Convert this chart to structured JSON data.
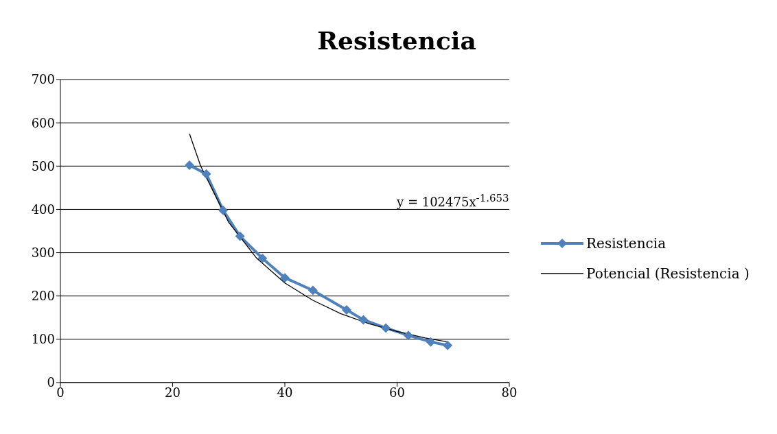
{
  "chart_data": {
    "type": "line",
    "title": "Resistencia",
    "series": [
      {
        "name": "Resistencia",
        "color": "#4f81bd",
        "marker": "diamond",
        "x": [
          23,
          26,
          29,
          32,
          36,
          40,
          45,
          51,
          54,
          58,
          62,
          66,
          69
        ],
        "values": [
          502,
          482,
          398,
          338,
          287,
          242,
          213,
          168,
          145,
          126,
          109,
          94,
          86
        ]
      },
      {
        "name": "Potencial (Resistencia )",
        "color": "#000000",
        "marker": "none",
        "x": [
          23,
          25,
          30,
          35,
          40,
          45,
          50,
          55,
          60,
          65,
          69
        ],
        "values": [
          575,
          500,
          370,
          287,
          230,
          190,
          159,
          136,
          118,
          103,
          94
        ]
      }
    ],
    "annotations": [
      "y = 102475x$^{-1.653}$"
    ],
    "xlim": [
      0,
      80
    ],
    "xticks": [
      0,
      20,
      40,
      60,
      80
    ],
    "ylim": [
      0,
      700
    ],
    "yticks": [
      0,
      100,
      200,
      300,
      400,
      500,
      600,
      700
    ],
    "grid": "y",
    "legend": "right",
    "line_style": "solid"
  }
}
